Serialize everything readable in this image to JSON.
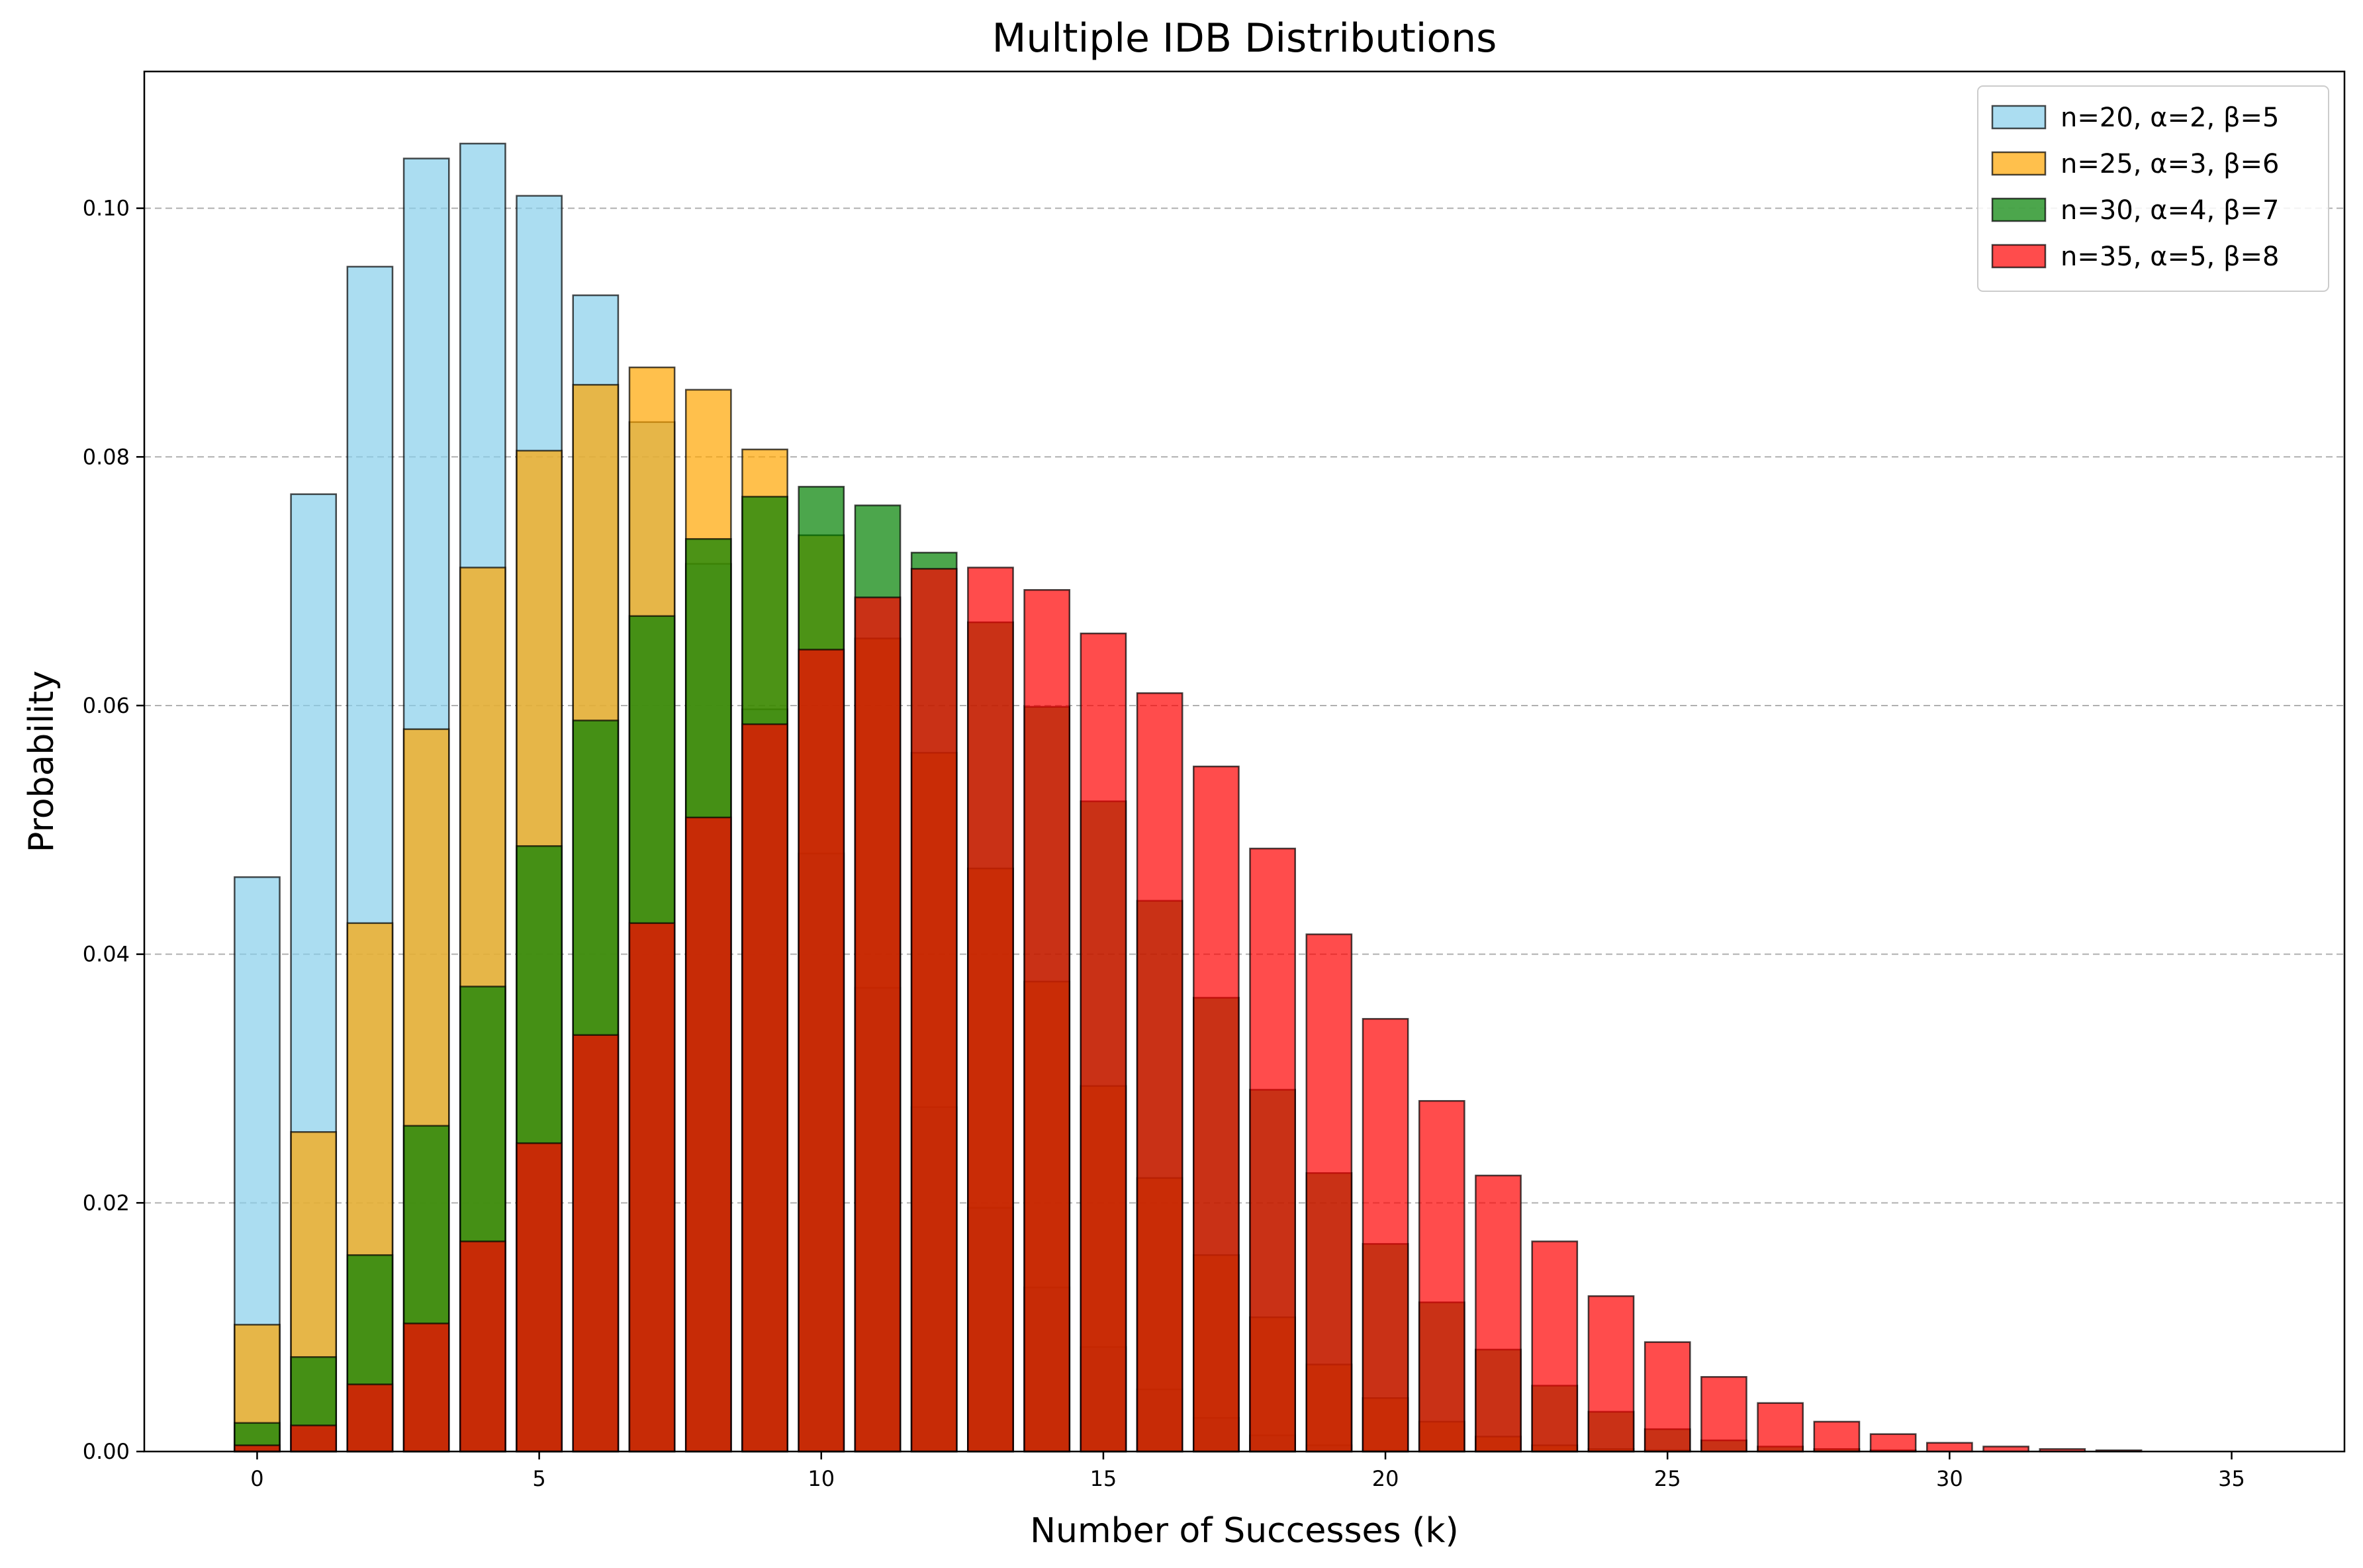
{
  "chart_data": {
    "type": "bar",
    "title": "Multiple IDB Distributions",
    "xlabel": "Number of Successes (k)",
    "ylabel": "Probability",
    "xlim": [
      -2,
      37
    ],
    "ylim": [
      0,
      0.111
    ],
    "xticks": [
      0,
      5,
      10,
      15,
      20,
      25,
      30,
      35
    ],
    "yticks": [
      0.0,
      0.02,
      0.04,
      0.06,
      0.08,
      0.1
    ],
    "ytick_labels": [
      "0.00",
      "0.02",
      "0.04",
      "0.06",
      "0.08",
      "0.10"
    ],
    "grid": {
      "y": true,
      "x": false,
      "style": "dashed"
    },
    "legend_position": "top-right",
    "series": [
      {
        "name": "n=20, α=2, β=5",
        "color": "#87ceeb",
        "alpha": 0.7,
        "x": [
          0,
          1,
          2,
          3,
          4,
          5,
          6,
          7,
          8,
          9,
          10,
          11,
          12,
          13,
          14,
          15,
          16,
          17,
          18,
          19,
          20
        ],
        "values": [
          0.0462,
          0.077,
          0.0953,
          0.104,
          0.1052,
          0.101,
          0.093,
          0.0828,
          0.0714,
          0.0597,
          0.0481,
          0.0373,
          0.0277,
          0.0196,
          0.0132,
          0.0084,
          0.005,
          0.0027,
          0.0013,
          0.0005,
          0.0001
        ]
      },
      {
        "name": "n=25, α=3, β=6",
        "color": "#ffa500",
        "alpha": 0.7,
        "x": [
          0,
          1,
          2,
          3,
          4,
          5,
          6,
          7,
          8,
          9,
          10,
          11,
          12,
          13,
          14,
          15,
          16,
          17,
          18,
          19,
          20,
          21,
          22,
          23,
          24,
          25
        ],
        "values": [
          0.0102,
          0.0257,
          0.0425,
          0.0581,
          0.0711,
          0.0805,
          0.0858,
          0.0872,
          0.0854,
          0.0806,
          0.0737,
          0.0654,
          0.0562,
          0.0469,
          0.0378,
          0.0294,
          0.022,
          0.0158,
          0.0108,
          0.007,
          0.0043,
          0.0024,
          0.0012,
          0.0005,
          0.0002,
          0.0001
        ]
      },
      {
        "name": "n=30, α=4, β=7",
        "color": "#008000",
        "alpha": 0.7,
        "x": [
          0,
          1,
          2,
          3,
          4,
          5,
          6,
          7,
          8,
          9,
          10,
          11,
          12,
          13,
          14,
          15,
          16,
          17,
          18,
          19,
          20,
          21,
          22,
          23,
          24,
          25,
          26,
          27,
          28,
          29,
          30
        ],
        "values": [
          0.0023,
          0.0076,
          0.0158,
          0.0262,
          0.0374,
          0.0487,
          0.0588,
          0.0672,
          0.0734,
          0.0768,
          0.0776,
          0.0761,
          0.0723,
          0.0667,
          0.0599,
          0.0523,
          0.0443,
          0.0365,
          0.0291,
          0.0224,
          0.0167,
          0.012,
          0.0082,
          0.0053,
          0.0032,
          0.0018,
          0.0009,
          0.0004,
          0.0002,
          0.0001,
          0.0
        ]
      },
      {
        "name": "n=35, α=5, β=8",
        "color": "#ff0000",
        "alpha": 0.7,
        "x": [
          0,
          1,
          2,
          3,
          4,
          5,
          6,
          7,
          8,
          9,
          10,
          11,
          12,
          13,
          14,
          15,
          16,
          17,
          18,
          19,
          20,
          21,
          22,
          23,
          24,
          25,
          26,
          27,
          28,
          29,
          30,
          31,
          32,
          33,
          34,
          35
        ],
        "values": [
          0.0005,
          0.0021,
          0.0054,
          0.0103,
          0.0169,
          0.0248,
          0.0335,
          0.0425,
          0.051,
          0.0585,
          0.0645,
          0.0687,
          0.071,
          0.0711,
          0.0693,
          0.0658,
          0.061,
          0.0551,
          0.0485,
          0.0416,
          0.0348,
          0.0282,
          0.0222,
          0.0169,
          0.0125,
          0.0088,
          0.006,
          0.0039,
          0.0024,
          0.0014,
          0.0007,
          0.0004,
          0.0002,
          0.0001,
          0.0,
          0.0
        ]
      }
    ]
  }
}
